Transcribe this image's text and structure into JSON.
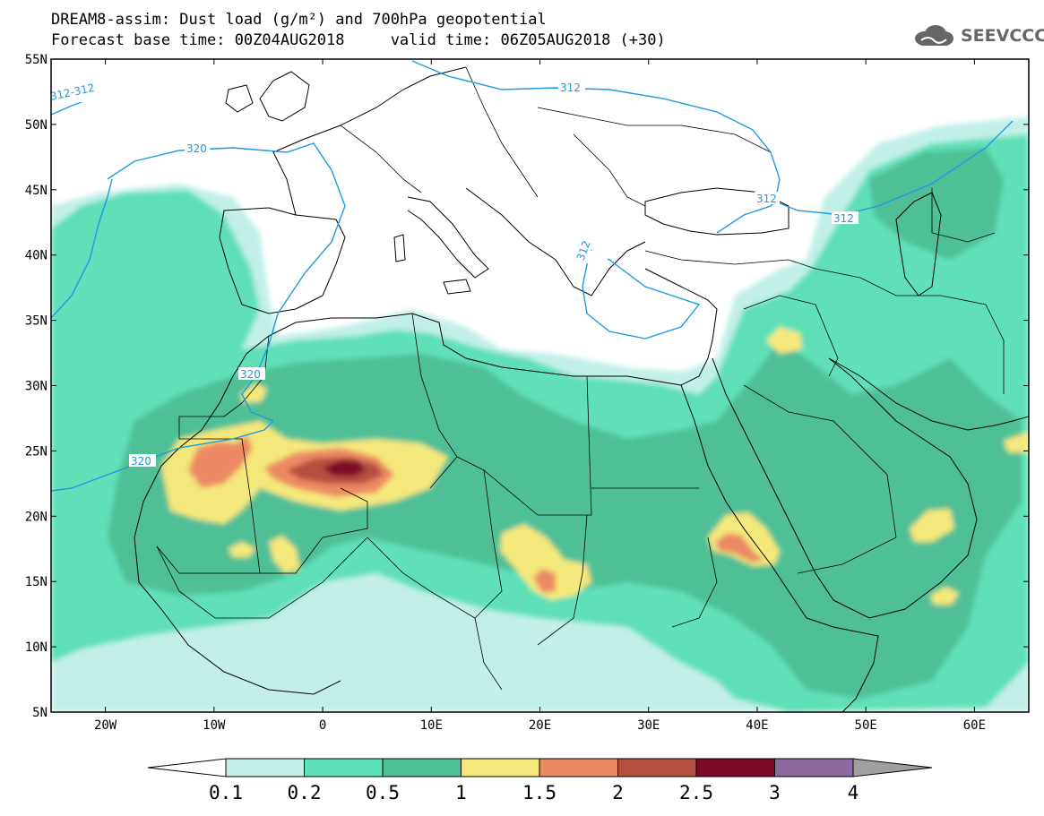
{
  "header": {
    "title_line1": "DREAM8-assim: Dust load (g/m²) and 700hPa geopotential",
    "title_line2": "Forecast base time: 00Z04AUG2018     valid time: 06Z05AUG2018 (+30)",
    "logo_text": "SEEVCCC",
    "logo_icon": "cloud-icon"
  },
  "axes": {
    "lon_labels": [
      "20W",
      "10W",
      "0",
      "10E",
      "20E",
      "30E",
      "40E",
      "50E",
      "60E"
    ],
    "lon_values": [
      -20,
      -10,
      0,
      10,
      20,
      30,
      40,
      50,
      60
    ],
    "lat_labels": [
      "55N",
      "50N",
      "45N",
      "40N",
      "35N",
      "30N",
      "25N",
      "20N",
      "15N",
      "10N",
      "5N"
    ],
    "lat_values": [
      55,
      50,
      45,
      40,
      35,
      30,
      25,
      20,
      15,
      10,
      5
    ],
    "lon_range": [
      -25,
      65
    ],
    "lat_range": [
      5,
      55
    ]
  },
  "contours": {
    "color": "#1e9be0",
    "labels": [
      "312-312",
      "320",
      "312",
      "312",
      "312",
      "312",
      "320",
      "320"
    ]
  },
  "colorbar": {
    "labels": [
      "0.1",
      "0.2",
      "0.5",
      "1",
      "1.5",
      "2",
      "2.5",
      "3",
      "4"
    ],
    "colors": [
      "#c2f0e8",
      "#5ee0b8",
      "#4fbf96",
      "#f5e87a",
      "#ec8a64",
      "#b55040",
      "#7a0a28",
      "#8c6aa0"
    ],
    "low_end_color": "#ffffff",
    "high_end_color": "#a0a0a0"
  },
  "dust_palette": {
    "c01": "#c2f0e8",
    "c02": "#5ee0b8",
    "c05": "#4fbf96",
    "c10": "#f5e87a",
    "c15": "#ec8a64",
    "c20": "#b55040",
    "c25": "#7a0a28"
  }
}
